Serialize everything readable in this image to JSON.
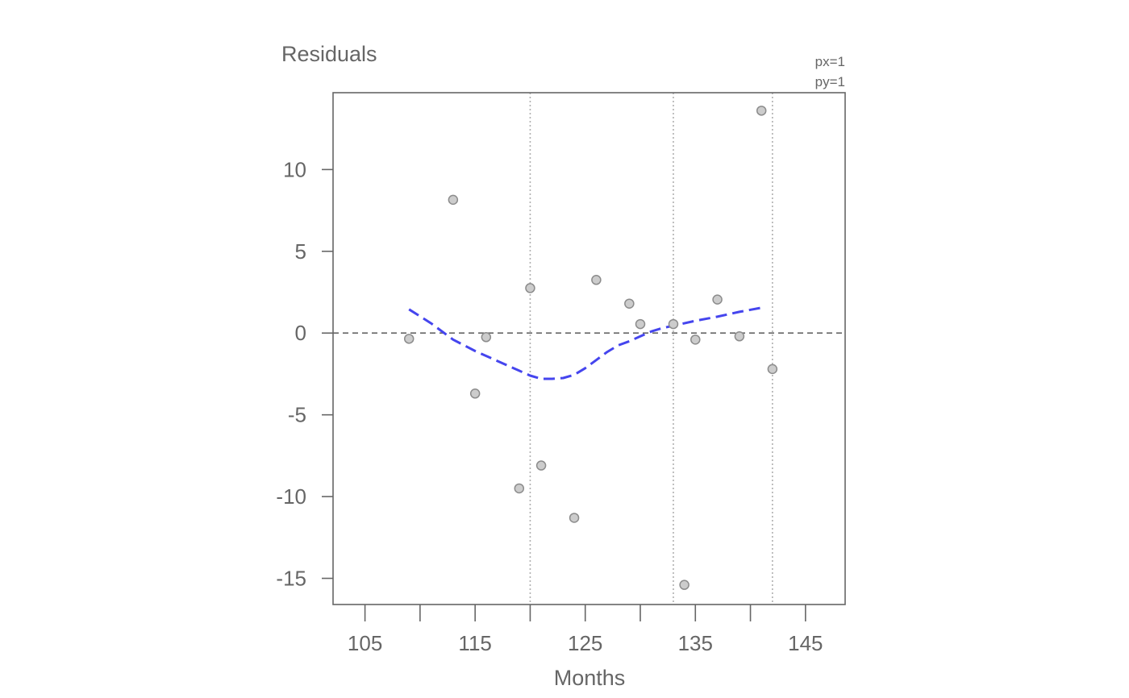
{
  "chart_data": {
    "type": "scatter",
    "ylabel": "Residuals",
    "xlabel": "Months",
    "corner_labels": [
      "px=1",
      "py=1"
    ],
    "xlim": [
      102.1,
      148.6
    ],
    "ylim": [
      -16.6,
      14.7
    ],
    "x_ticks": [
      105,
      110,
      115,
      120,
      125,
      130,
      135,
      140,
      145
    ],
    "x_tick_labels": [
      {
        "value": 105,
        "label": "105"
      },
      {
        "value": 115,
        "label": "115"
      },
      {
        "value": 125,
        "label": "125"
      },
      {
        "value": 135,
        "label": "135"
      },
      {
        "value": 145,
        "label": "145"
      }
    ],
    "y_ticks": [
      {
        "value": 10,
        "label": "10"
      },
      {
        "value": 5,
        "label": "5"
      },
      {
        "value": 0,
        "label": "0"
      },
      {
        "value": -5,
        "label": "-5"
      },
      {
        "value": -10,
        "label": "-10"
      },
      {
        "value": -15,
        "label": "-15"
      }
    ],
    "reference_line_y": 0,
    "vertical_lines_x": [
      120,
      133,
      142
    ],
    "grid": false,
    "colors": {
      "points_fill": "#cccccc",
      "points_stroke": "#8c8c8c",
      "smooth_line": "#4545ee",
      "reference_line": "#666666",
      "vertical_lines": "#b0b0b0",
      "frame": "#666666",
      "text": "#666666"
    },
    "points": [
      {
        "x": 109,
        "y": -0.35
      },
      {
        "x": 113,
        "y": 8.15
      },
      {
        "x": 115,
        "y": -3.7
      },
      {
        "x": 116,
        "y": -0.25
      },
      {
        "x": 119,
        "y": -9.5
      },
      {
        "x": 120,
        "y": 2.75
      },
      {
        "x": 121,
        "y": -8.1
      },
      {
        "x": 124,
        "y": -11.3
      },
      {
        "x": 126,
        "y": 3.25
      },
      {
        "x": 129,
        "y": 1.8
      },
      {
        "x": 130,
        "y": 0.55
      },
      {
        "x": 133,
        "y": 0.55
      },
      {
        "x": 134,
        "y": -15.4
      },
      {
        "x": 135,
        "y": -0.4
      },
      {
        "x": 137,
        "y": 2.05
      },
      {
        "x": 139,
        "y": -0.2
      },
      {
        "x": 141,
        "y": 13.6
      },
      {
        "x": 142,
        "y": -2.2
      }
    ],
    "smooth_series": {
      "x": [
        109,
        111,
        113,
        115,
        117,
        119,
        120,
        121,
        122,
        123,
        124,
        125,
        126,
        127,
        128,
        129,
        130,
        131,
        132,
        133,
        135,
        137,
        139,
        141
      ],
      "y": [
        1.45,
        0.6,
        -0.4,
        -1.1,
        -1.7,
        -2.3,
        -2.6,
        -2.8,
        -2.8,
        -2.75,
        -2.55,
        -2.15,
        -1.65,
        -1.15,
        -0.75,
        -0.5,
        -0.2,
        0.1,
        0.3,
        0.45,
        0.75,
        1.0,
        1.3,
        1.55
      ]
    }
  }
}
